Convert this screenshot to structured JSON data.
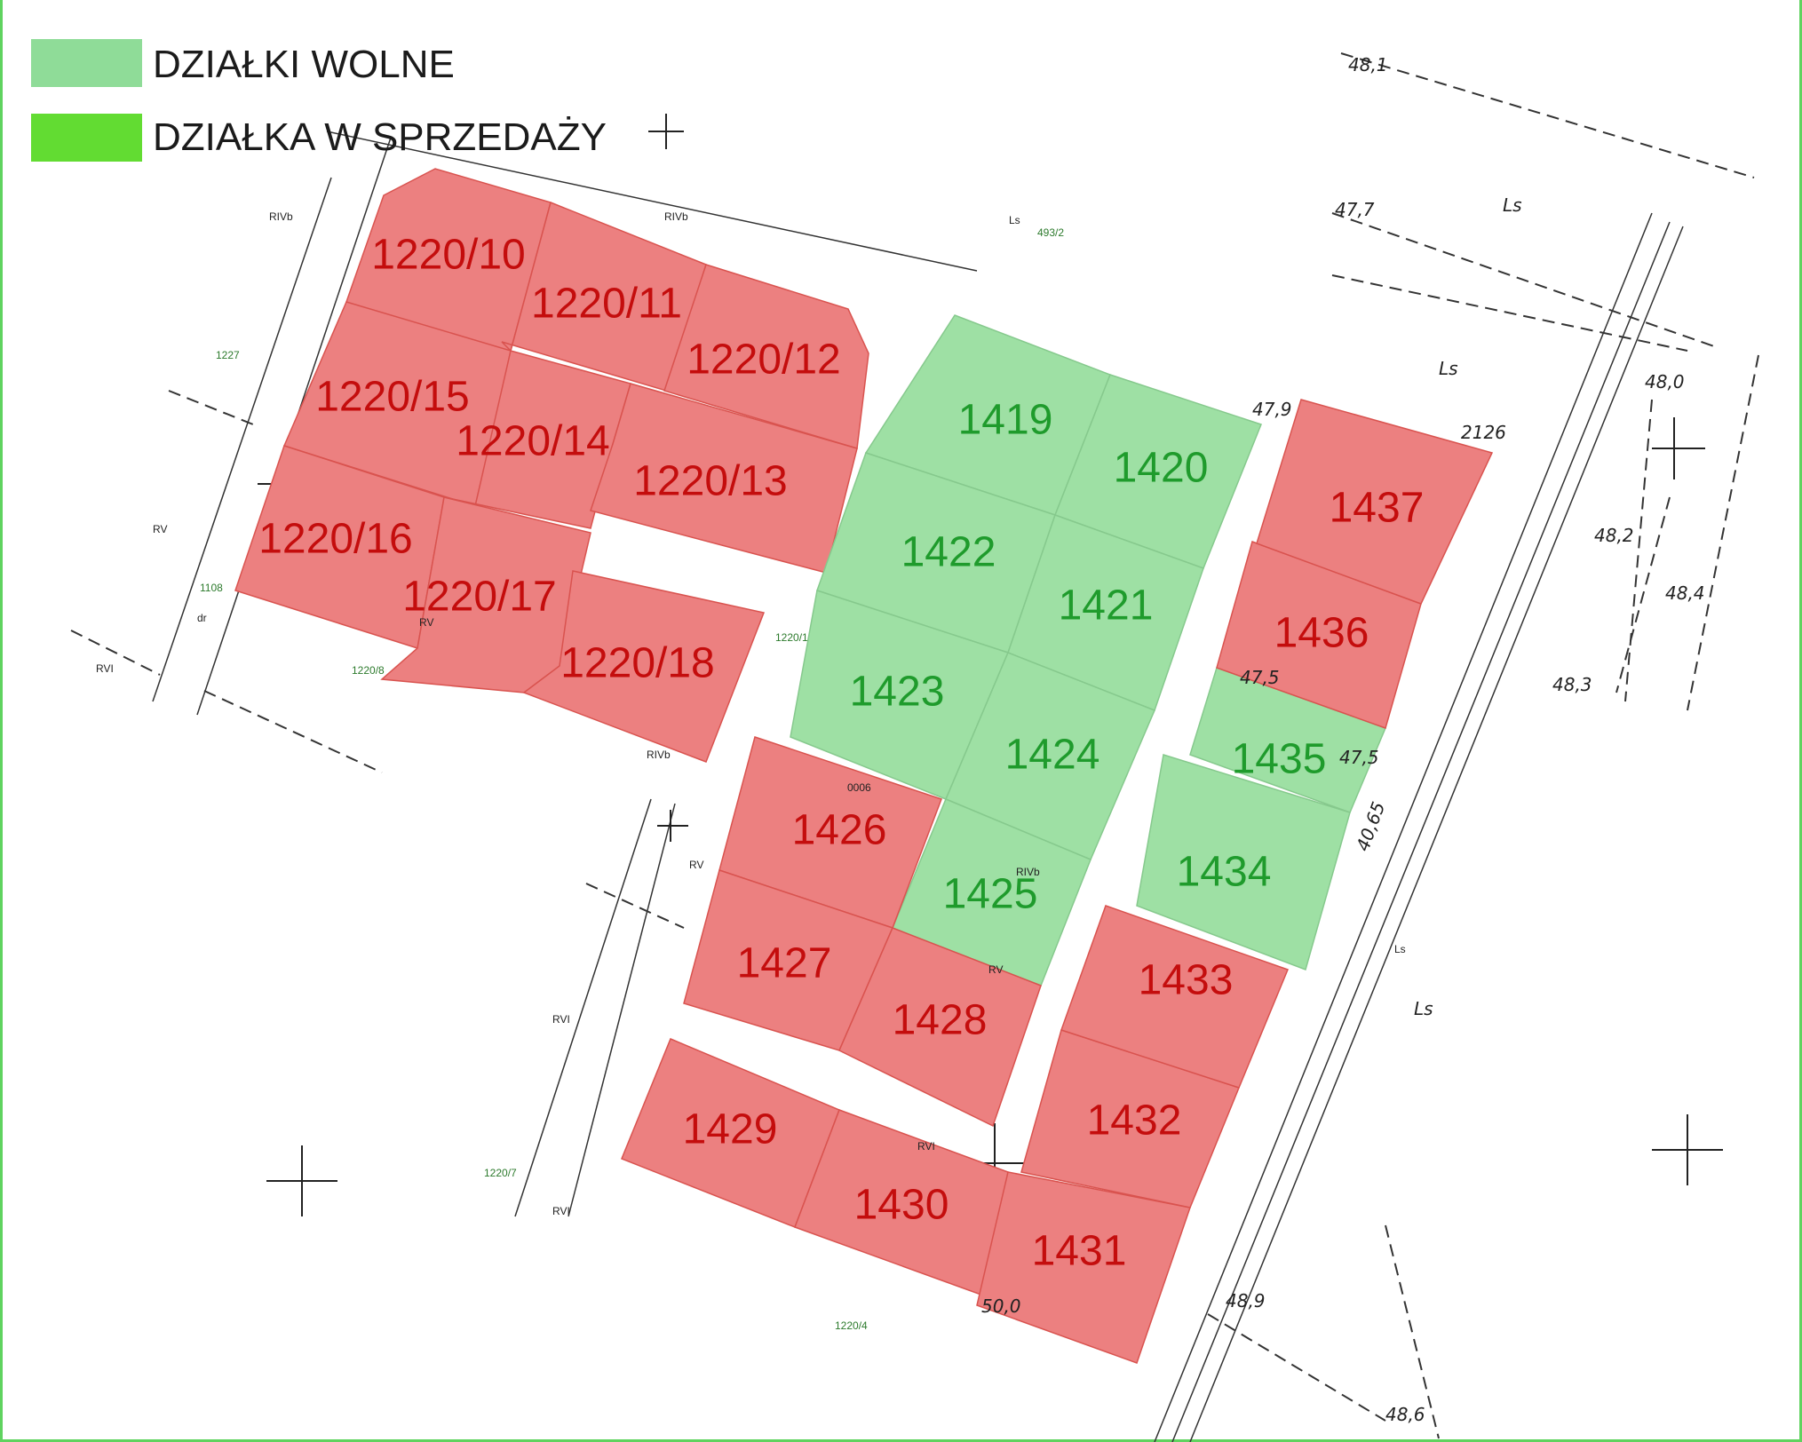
{
  "legend": [
    {
      "label": "DZIAŁKI WOLNE",
      "color": "#8fdc98"
    },
    {
      "label": "DZIAŁKA W SPRZEDAŻY",
      "color": "#62dc32"
    }
  ],
  "colors": {
    "sold": "#ec8080",
    "free": "#9ee0a4",
    "sold_text": "#c40d0d",
    "free_text": "#1f9b2c"
  },
  "plots": [
    {
      "id": "1220/10",
      "status": "sold"
    },
    {
      "id": "1220/11",
      "status": "sold"
    },
    {
      "id": "1220/12",
      "status": "sold"
    },
    {
      "id": "1220/15",
      "status": "sold"
    },
    {
      "id": "1220/14",
      "status": "sold"
    },
    {
      "id": "1220/13",
      "status": "sold"
    },
    {
      "id": "1220/16",
      "status": "sold"
    },
    {
      "id": "1220/17",
      "status": "sold"
    },
    {
      "id": "1220/18",
      "status": "sold"
    },
    {
      "id": "1419",
      "status": "free"
    },
    {
      "id": "1420",
      "status": "free"
    },
    {
      "id": "1422",
      "status": "free"
    },
    {
      "id": "1421",
      "status": "free"
    },
    {
      "id": "1423",
      "status": "free"
    },
    {
      "id": "1424",
      "status": "free"
    },
    {
      "id": "1425",
      "status": "free"
    },
    {
      "id": "1426",
      "status": "sold"
    },
    {
      "id": "1427",
      "status": "sold"
    },
    {
      "id": "1428",
      "status": "sold"
    },
    {
      "id": "1429",
      "status": "sold"
    },
    {
      "id": "1430",
      "status": "sold"
    },
    {
      "id": "1431",
      "status": "sold"
    },
    {
      "id": "1432",
      "status": "sold"
    },
    {
      "id": "1433",
      "status": "sold"
    },
    {
      "id": "1434",
      "status": "free"
    },
    {
      "id": "1435",
      "status": "free"
    },
    {
      "id": "1436",
      "status": "sold"
    },
    {
      "id": "1437",
      "status": "sold"
    }
  ],
  "map_labels": {
    "rivb_1": "RIVb",
    "rivb_2": "RIVb",
    "ls_1": "Ls",
    "num_493_2": "493/2",
    "num_1227": "1227",
    "rv_1": "RV",
    "num_1108": "1108",
    "dr": "dr",
    "rvi_1": "RVI",
    "num_1220_8": "1220/8",
    "rv_2": "RV",
    "num_1220_1": "1220/1",
    "rivb_3": "RIVb",
    "num_0006": "0006",
    "rv_3": "RV",
    "rivb_4": "RIVb",
    "rv_4": "RV",
    "rvi_2": "RVI",
    "rvi_3": "RVI",
    "num_1220_7": "1220/7",
    "rvi_4": "RVI",
    "num_1220_4": "1220/4",
    "ls_2": "Ls",
    "h_481": "48,1",
    "h_477": "47,7",
    "h_Ls1": "Ls",
    "h_Ls2": "Ls",
    "h_480": "48,0",
    "h_479": "47,9",
    "h_2126": "2126",
    "h_482": "48,2",
    "h_484": "48,4",
    "h_483": "48,3",
    "h_475a": "47,5",
    "h_475b": "47,5",
    "h_4065": "40,65",
    "h_Ls3": "Ls",
    "h_489": "48,9",
    "h_486": "48,6",
    "h_500": "50,0"
  }
}
